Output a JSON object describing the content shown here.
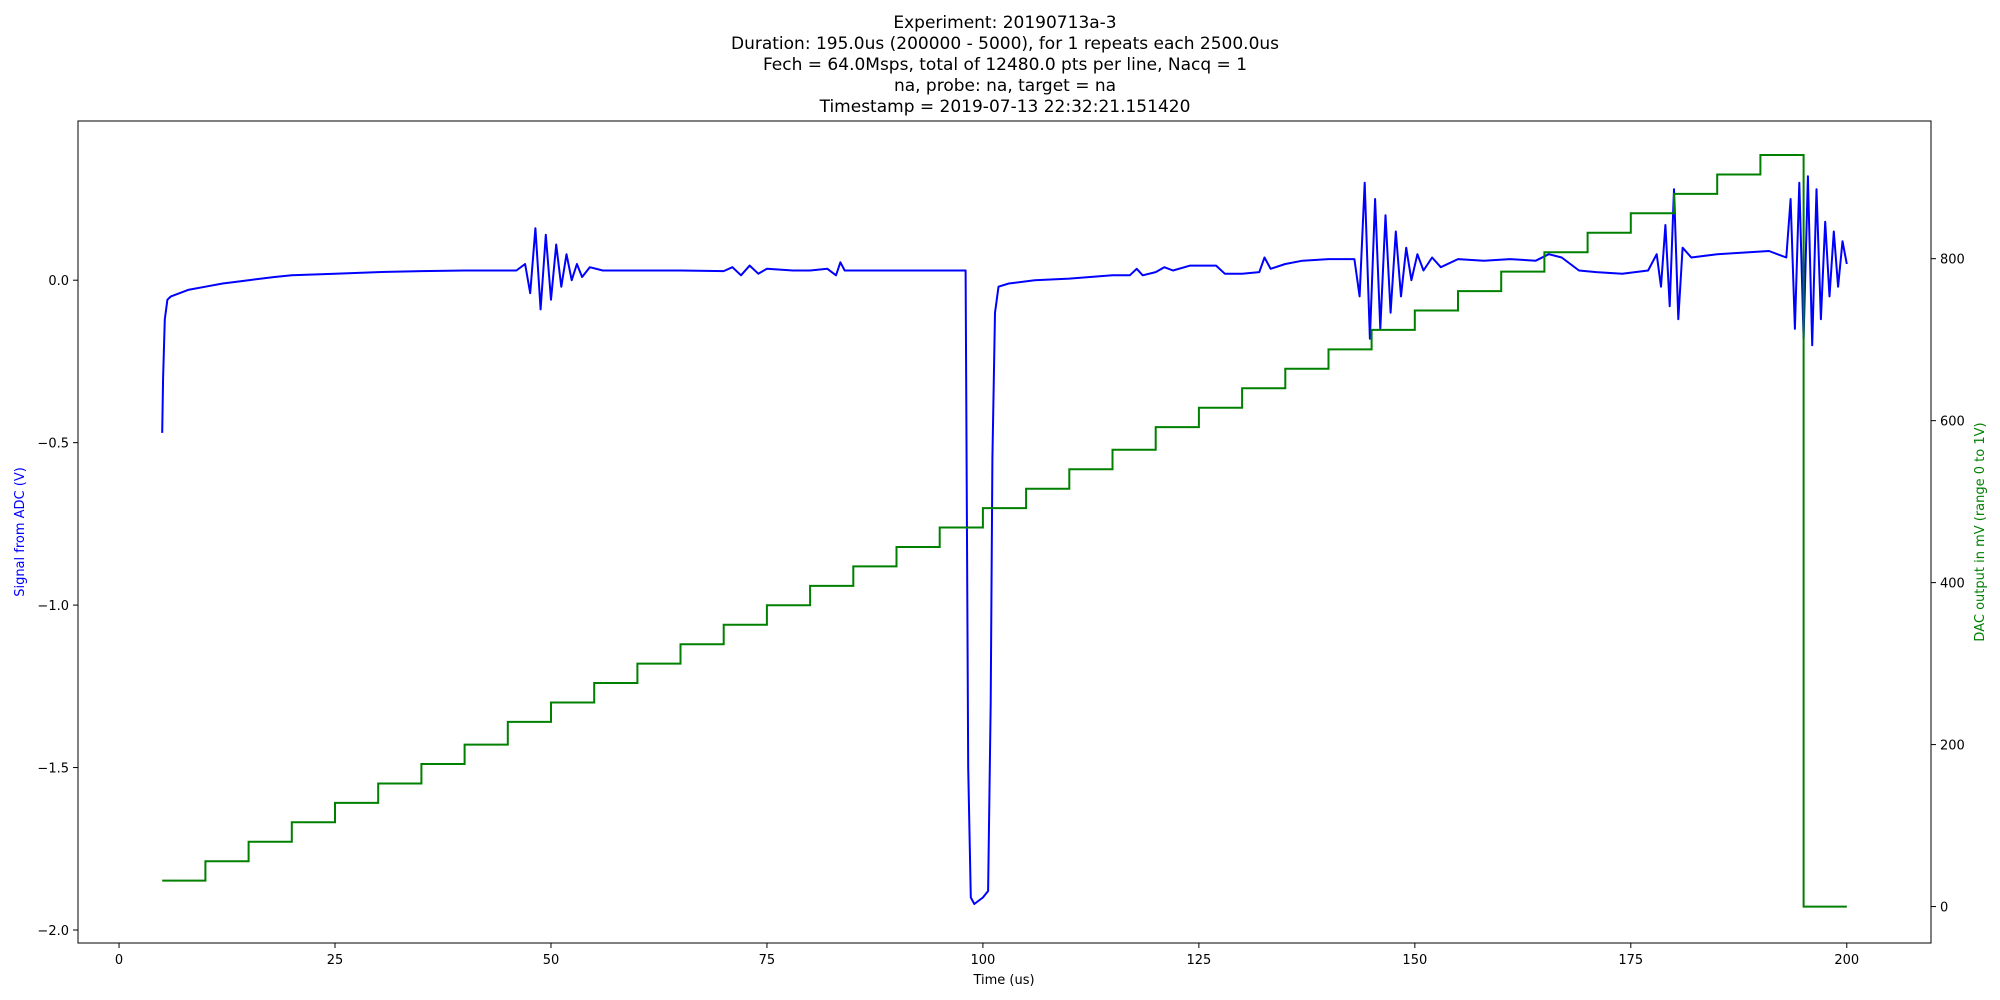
{
  "chart_data": {
    "type": "line",
    "title_lines": [
      "Experiment: 20190713a-3",
      "Duration: 195.0us (200000 - 5000), for 1 repeats each 2500.0us",
      "Fech = 64.0Msps, total of 12480.0 pts per line, Nacq = 1",
      "na, probe: na, target = na",
      "Timestamp = 2019-07-13 22:32:21.151420"
    ],
    "xlabel": "Time (us)",
    "ylabel_left": "Signal from ADC (V)",
    "ylabel_right": "DAC output in mV (range 0 to 1V)",
    "xlim": [
      -4.75,
      209.75
    ],
    "ylim_left": [
      -2.04,
      0.49
    ],
    "ylim_right": [
      -45,
      970
    ],
    "x_ticks": [
      0,
      25,
      50,
      75,
      100,
      125,
      150,
      175,
      200
    ],
    "x_tick_labels": [
      "0",
      "25",
      "50",
      "75",
      "100",
      "125",
      "150",
      "175",
      "200"
    ],
    "y_left_ticks": [
      0.0,
      -0.5,
      -1.0,
      -1.5,
      -2.0
    ],
    "y_left_tick_labels": [
      "0.0",
      "−0.5",
      "−1.0",
      "−1.5",
      "−2.0"
    ],
    "y_right_ticks": [
      0,
      200,
      400,
      600,
      800
    ],
    "y_right_tick_labels": [
      "0",
      "200",
      "400",
      "600",
      "800"
    ],
    "grid": false,
    "legend": "none",
    "colors": {
      "signal": "#0000ff",
      "dac": "#008000",
      "left_label": "#0000ff",
      "right_label": "#008000"
    },
    "series": [
      {
        "axis": "left",
        "points": [
          [
            5.0,
            -0.47
          ],
          [
            5.1,
            -0.3
          ],
          [
            5.3,
            -0.12
          ],
          [
            5.6,
            -0.06
          ],
          [
            6.0,
            -0.05
          ],
          [
            7,
            -0.04
          ],
          [
            8,
            -0.03
          ],
          [
            10,
            -0.02
          ],
          [
            12,
            -0.01
          ],
          [
            15,
            0.0
          ],
          [
            18,
            0.01
          ],
          [
            20,
            0.015
          ],
          [
            25,
            0.02
          ],
          [
            30,
            0.025
          ],
          [
            35,
            0.028
          ],
          [
            40,
            0.03
          ],
          [
            46,
            0.03
          ],
          [
            47,
            0.05
          ],
          [
            47.6,
            -0.04
          ],
          [
            48.2,
            0.16
          ],
          [
            48.8,
            -0.09
          ],
          [
            49.4,
            0.14
          ],
          [
            50.0,
            -0.06
          ],
          [
            50.6,
            0.11
          ],
          [
            51.2,
            -0.02
          ],
          [
            51.8,
            0.08
          ],
          [
            52.4,
            0.0
          ],
          [
            53.0,
            0.05
          ],
          [
            53.6,
            0.01
          ],
          [
            54.5,
            0.04
          ],
          [
            56,
            0.03
          ],
          [
            60,
            0.03
          ],
          [
            65,
            0.03
          ],
          [
            70,
            0.028
          ],
          [
            71,
            0.04
          ],
          [
            72,
            0.015
          ],
          [
            73,
            0.045
          ],
          [
            74,
            0.02
          ],
          [
            75,
            0.035
          ],
          [
            78,
            0.03
          ],
          [
            80,
            0.03
          ],
          [
            82,
            0.035
          ],
          [
            83,
            0.015
          ],
          [
            83.5,
            0.055
          ],
          [
            84,
            0.03
          ],
          [
            88,
            0.03
          ],
          [
            92,
            0.03
          ],
          [
            95,
            0.03
          ],
          [
            98,
            0.03
          ],
          [
            98.3,
            -1.5
          ],
          [
            98.6,
            -1.9
          ],
          [
            99.0,
            -1.92
          ],
          [
            100,
            -1.9
          ],
          [
            100.6,
            -1.88
          ],
          [
            100.9,
            -1.3
          ],
          [
            101.1,
            -0.55
          ],
          [
            101.4,
            -0.1
          ],
          [
            101.8,
            -0.02
          ],
          [
            103,
            -0.01
          ],
          [
            106,
            -0.0
          ],
          [
            110,
            0.005
          ],
          [
            115,
            0.015
          ],
          [
            117,
            0.015
          ],
          [
            117.8,
            0.035
          ],
          [
            118.5,
            0.015
          ],
          [
            120,
            0.025
          ],
          [
            121,
            0.04
          ],
          [
            122,
            0.03
          ],
          [
            124,
            0.045
          ],
          [
            127,
            0.045
          ],
          [
            128,
            0.02
          ],
          [
            130,
            0.02
          ],
          [
            132,
            0.025
          ],
          [
            132.6,
            0.07
          ],
          [
            133.3,
            0.035
          ],
          [
            135,
            0.05
          ],
          [
            137,
            0.06
          ],
          [
            140,
            0.065
          ],
          [
            143,
            0.065
          ],
          [
            143.6,
            -0.05
          ],
          [
            144.2,
            0.3
          ],
          [
            144.8,
            -0.18
          ],
          [
            145.4,
            0.25
          ],
          [
            146.0,
            -0.15
          ],
          [
            146.6,
            0.2
          ],
          [
            147.2,
            -0.1
          ],
          [
            147.8,
            0.15
          ],
          [
            148.4,
            -0.05
          ],
          [
            149,
            0.1
          ],
          [
            149.6,
            0.0
          ],
          [
            150.3,
            0.08
          ],
          [
            151,
            0.03
          ],
          [
            152,
            0.07
          ],
          [
            153,
            0.04
          ],
          [
            155,
            0.065
          ],
          [
            158,
            0.06
          ],
          [
            161,
            0.065
          ],
          [
            164,
            0.06
          ],
          [
            165.5,
            0.08
          ],
          [
            167,
            0.07
          ],
          [
            169,
            0.03
          ],
          [
            171,
            0.025
          ],
          [
            174,
            0.02
          ],
          [
            177,
            0.03
          ],
          [
            178,
            0.08
          ],
          [
            178.5,
            -0.02
          ],
          [
            179.0,
            0.17
          ],
          [
            179.5,
            -0.08
          ],
          [
            180.0,
            0.28
          ],
          [
            180.5,
            -0.12
          ],
          [
            181,
            0.1
          ],
          [
            182,
            0.07
          ],
          [
            185,
            0.08
          ],
          [
            188,
            0.085
          ],
          [
            191,
            0.09
          ],
          [
            193,
            0.07
          ],
          [
            193.5,
            0.25
          ],
          [
            194.0,
            -0.15
          ],
          [
            194.5,
            0.3
          ],
          [
            195.0,
            -0.18
          ],
          [
            195.5,
            0.32
          ],
          [
            196.0,
            -0.2
          ],
          [
            196.5,
            0.28
          ],
          [
            197.0,
            -0.12
          ],
          [
            197.5,
            0.18
          ],
          [
            198.0,
            -0.05
          ],
          [
            198.5,
            0.15
          ],
          [
            199.0,
            -0.02
          ],
          [
            199.5,
            0.12
          ],
          [
            200,
            0.05
          ]
        ]
      },
      {
        "axis": "right",
        "steps": [
          [
            5,
            32
          ],
          [
            10,
            56
          ],
          [
            15,
            80
          ],
          [
            20,
            104
          ],
          [
            25,
            128
          ],
          [
            30,
            152
          ],
          [
            35,
            176
          ],
          [
            40,
            200
          ],
          [
            45,
            228
          ],
          [
            50,
            252
          ],
          [
            55,
            276
          ],
          [
            60,
            300
          ],
          [
            65,
            324
          ],
          [
            70,
            348
          ],
          [
            75,
            372
          ],
          [
            80,
            396
          ],
          [
            85,
            420
          ],
          [
            90,
            444
          ],
          [
            95,
            468
          ],
          [
            100,
            492
          ],
          [
            105,
            516
          ],
          [
            110,
            540
          ],
          [
            115,
            564
          ],
          [
            120,
            592
          ],
          [
            125,
            616
          ],
          [
            130,
            640
          ],
          [
            135,
            664
          ],
          [
            140,
            688
          ],
          [
            145,
            712
          ],
          [
            150,
            736
          ],
          [
            155,
            760
          ],
          [
            160,
            784
          ],
          [
            165,
            808
          ],
          [
            170,
            832
          ],
          [
            175,
            856
          ],
          [
            180,
            880
          ],
          [
            185,
            904
          ],
          [
            190,
            928
          ],
          [
            195,
            0
          ],
          [
            200,
            0
          ]
        ]
      }
    ]
  }
}
